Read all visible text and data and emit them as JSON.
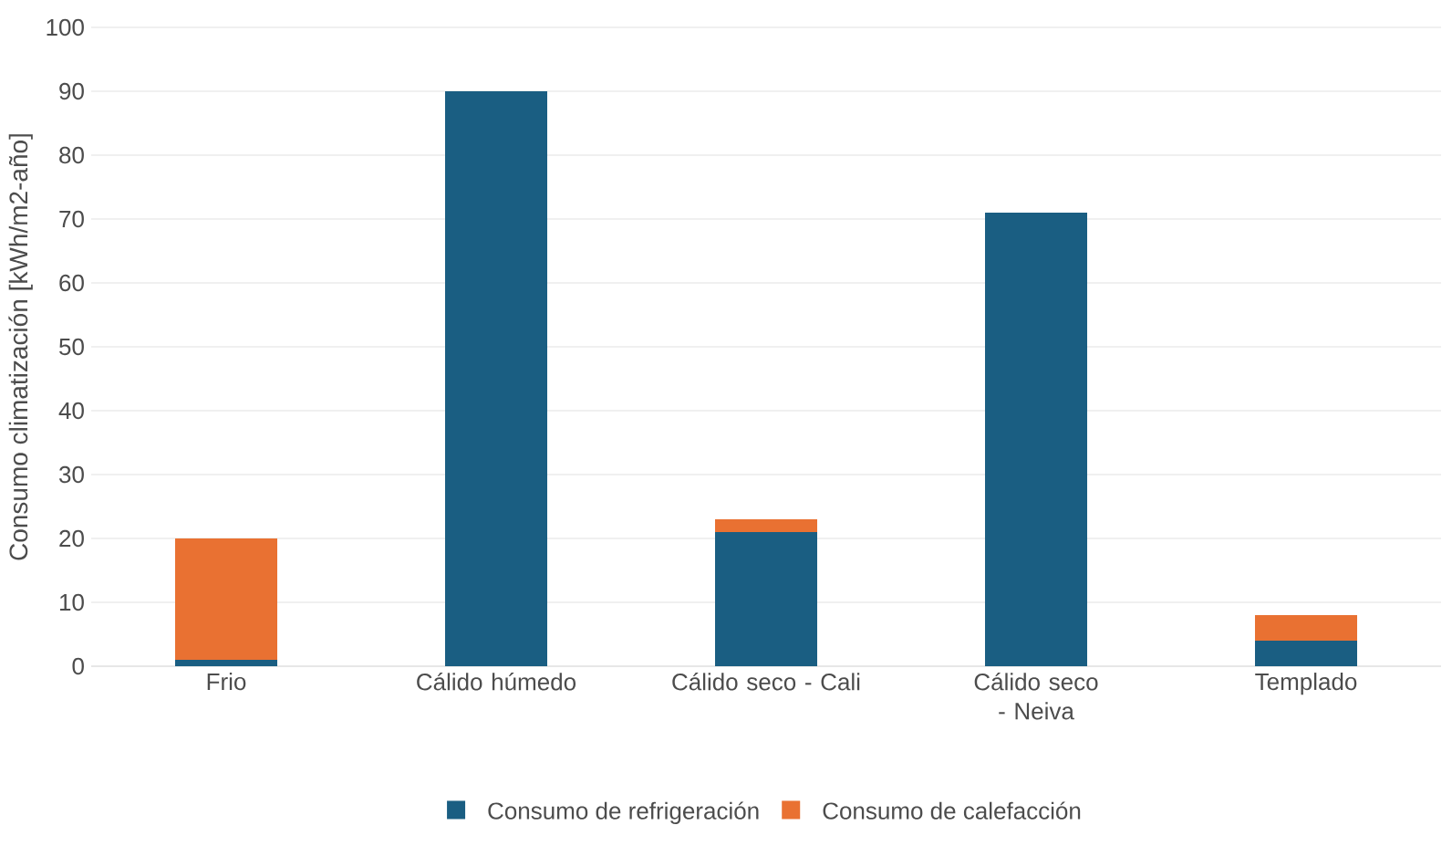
{
  "chart_data": {
    "type": "bar",
    "stacked": true,
    "ylabel": "Consumo climatización [kWh/m2-año]",
    "categories": [
      "Frio",
      "Cálido húmedo",
      "Cálido seco - Cali",
      "Cálido seco - Neiva",
      "Templado"
    ],
    "series": [
      {
        "name": "Consumo de refrigeración",
        "color": "#1a5e82",
        "values": [
          1,
          90,
          21,
          71,
          4
        ]
      },
      {
        "name": "Consumo de calefacción",
        "color": "#e97132",
        "values": [
          19,
          0,
          2,
          0,
          4
        ]
      }
    ],
    "ylim": [
      0,
      100
    ],
    "yticks": [
      0,
      10,
      20,
      30,
      40,
      50,
      60,
      70,
      80,
      90,
      100
    ],
    "grid": "y",
    "legend": "bottom"
  }
}
